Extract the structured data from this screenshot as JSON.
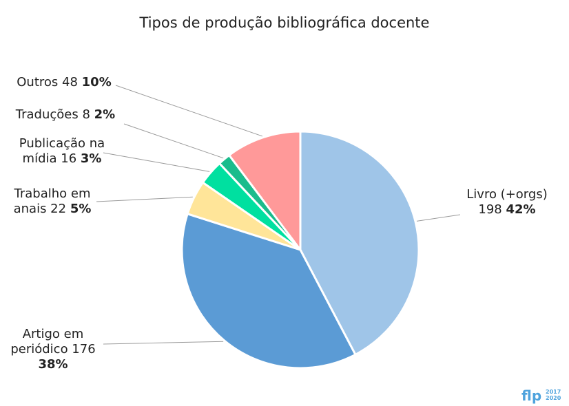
{
  "chart_data": {
    "type": "pie",
    "title": "Tipos de produção bibliográfica docente",
    "slices": [
      {
        "name": "Livro (+orgs)",
        "value": 198,
        "percent_label": "42%",
        "color": "#9fc5e8"
      },
      {
        "name": "Artigo em periódico",
        "value": 176,
        "percent_label": "38%",
        "color": "#5b9bd5"
      },
      {
        "name": "Trabalho em anais",
        "value": 22,
        "percent_label": "5%",
        "color": "#ffe599"
      },
      {
        "name": "Publicação na mídia",
        "value": 16,
        "percent_label": "3%",
        "color": "#00e0a0"
      },
      {
        "name": "Traduções",
        "value": 8,
        "percent_label": "2%",
        "color": "#1abc8c"
      },
      {
        "name": "Outros",
        "value": 48,
        "percent_label": "10%",
        "color": "#ff9999"
      }
    ]
  },
  "logo": {
    "mark": "flp",
    "years_top": "2017",
    "years_bottom": "2020",
    "color": "#4fa3dd"
  }
}
